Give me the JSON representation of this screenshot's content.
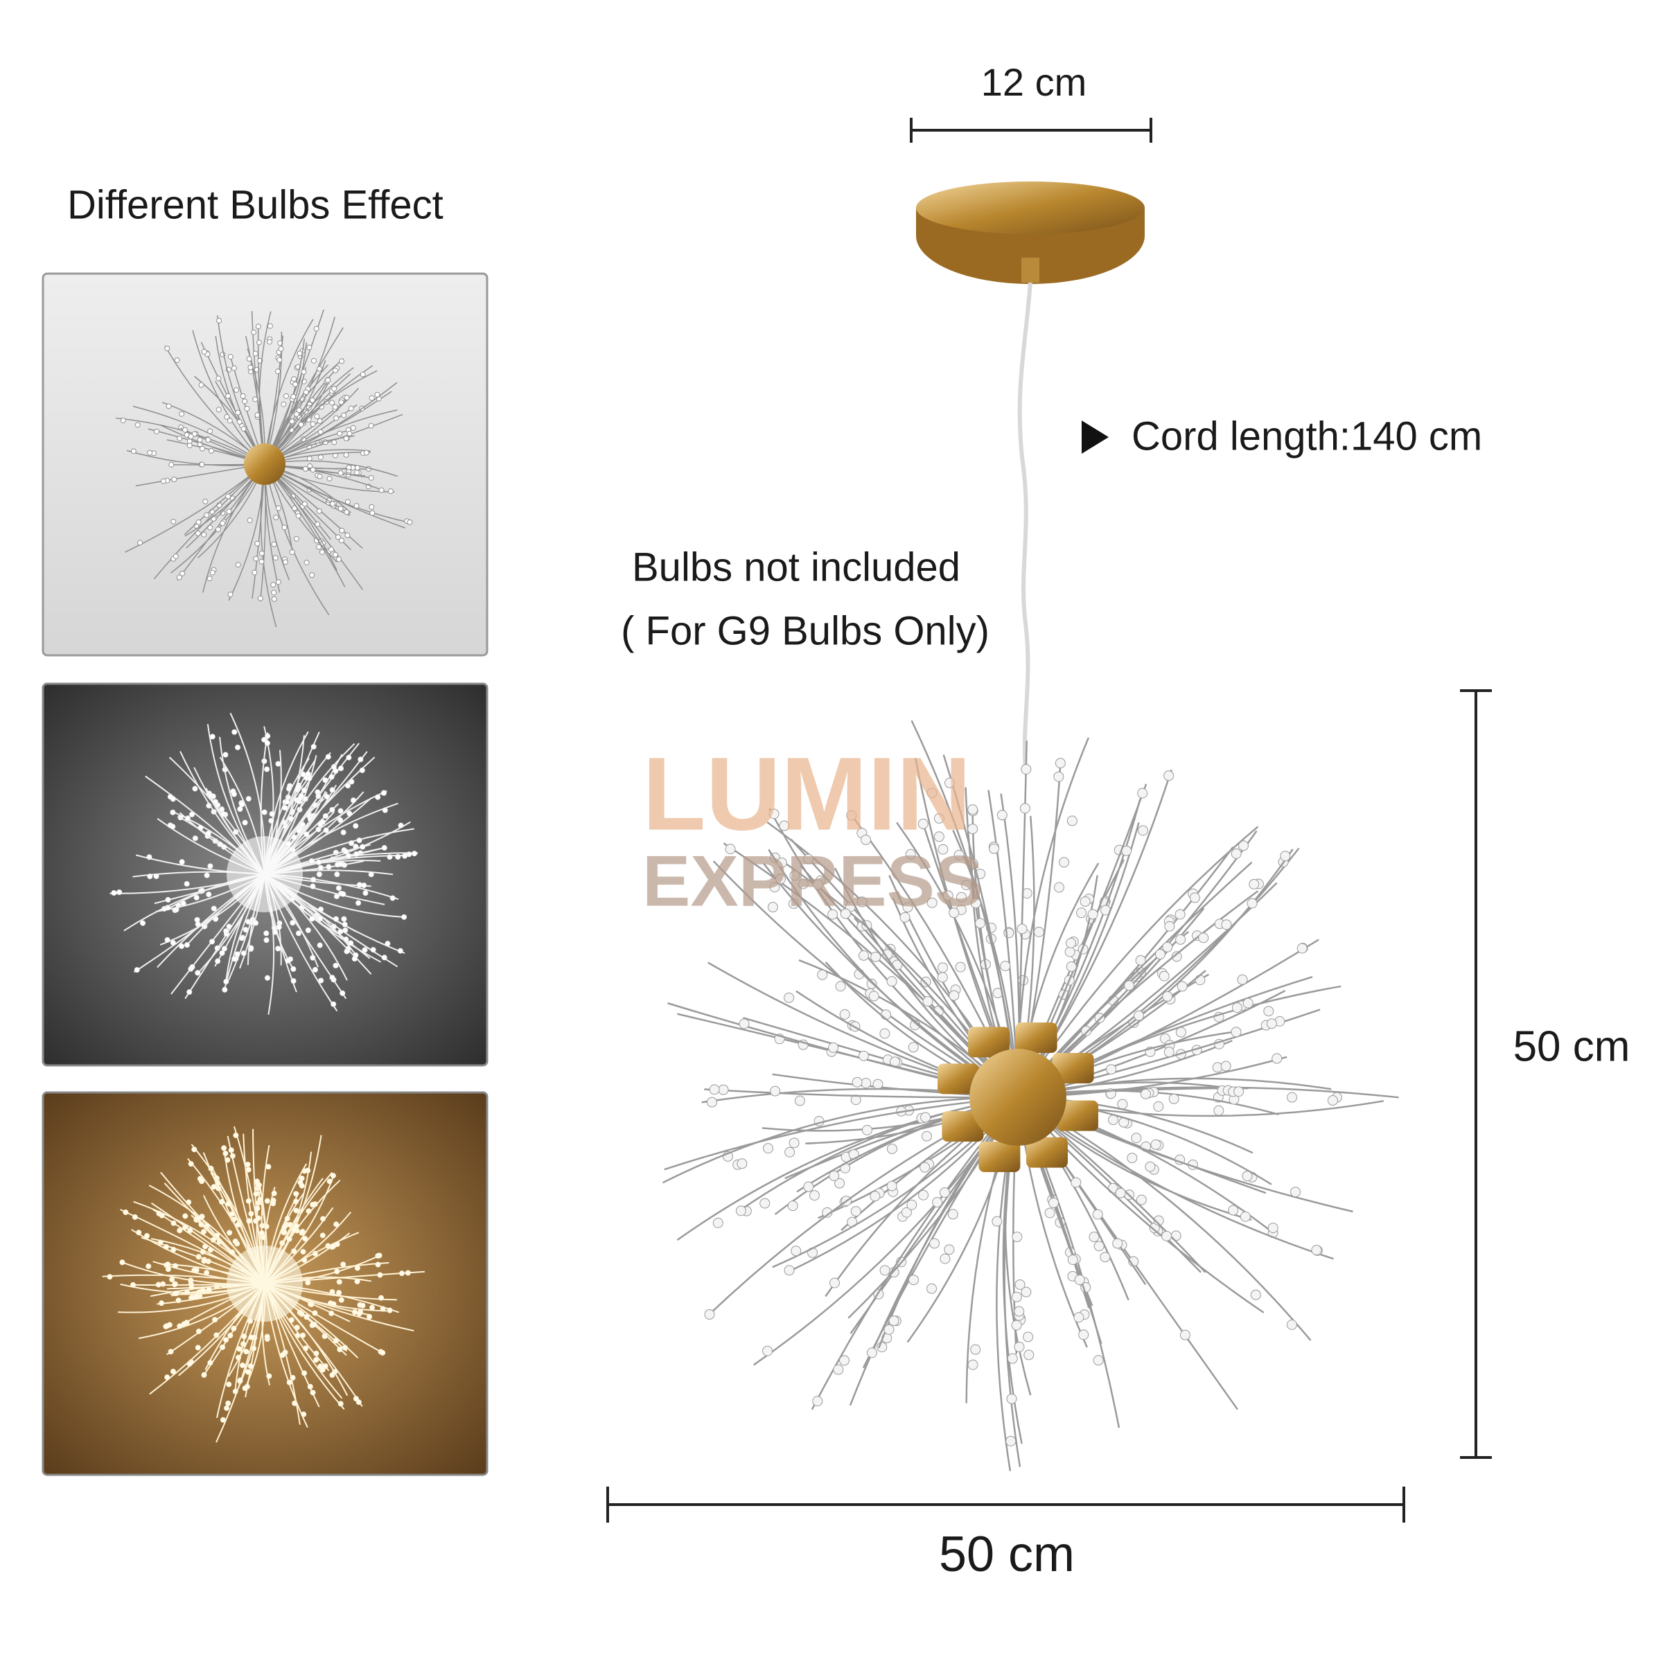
{
  "panel_title": "Different Bulbs Effect",
  "dimensions": {
    "canopy_width": "12 cm",
    "cord": "Cord length:140 cm",
    "height": "50 cm",
    "width": "50 cm"
  },
  "notes": [
    "Bulbs not included",
    "( For G9 Bulbs Only)"
  ],
  "watermark": {
    "line1": "LUMIN",
    "line2": "EXPRESS"
  }
}
